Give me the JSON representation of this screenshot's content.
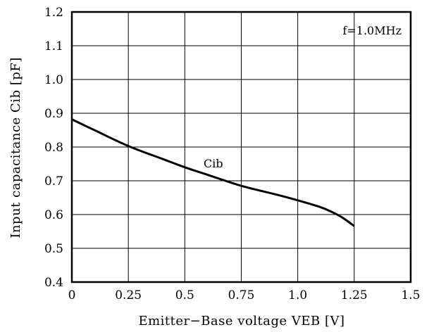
{
  "chart_data": {
    "type": "line",
    "xlabel": "Emitter−Base voltage VEB [V]",
    "ylabel": "Input capacitance Cib [pF]",
    "xlim": [
      0,
      1.5
    ],
    "ylim": [
      0.4,
      1.2
    ],
    "x_ticks": [
      "0",
      "0.25",
      "0.5",
      "0.75",
      "1.0",
      "1.25",
      "1.5"
    ],
    "y_ticks": [
      "0.4",
      "0.5",
      "0.6",
      "0.7",
      "0.8",
      "0.9",
      "1.0",
      "1.1",
      "1.2"
    ],
    "grid": true,
    "annotations": [
      "f=1.0MHz",
      "Cib"
    ],
    "series": [
      {
        "name": "Cib",
        "color": "#000000",
        "x": [
          0,
          0.1,
          0.25,
          0.4,
          0.5,
          0.6,
          0.75,
          0.9,
          1.0,
          1.1,
          1.15,
          1.2,
          1.25
        ],
        "y": [
          0.882,
          0.85,
          0.803,
          0.765,
          0.74,
          0.718,
          0.685,
          0.66,
          0.642,
          0.622,
          0.608,
          0.59,
          0.566
        ]
      }
    ]
  }
}
